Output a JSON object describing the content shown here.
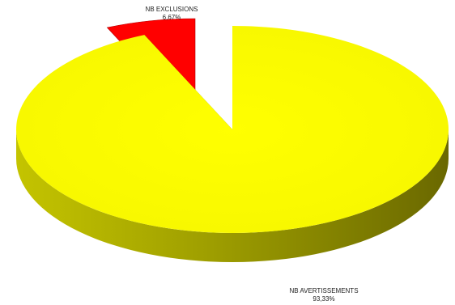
{
  "chart_data": {
    "type": "pie",
    "style": "3d-exploded",
    "slices": [
      {
        "label": "NB AVERTISSEMENTS",
        "value": 93.33,
        "value_label": "93,33%",
        "color": "#ffff00"
      },
      {
        "label": "NB EXCLUSIONS",
        "value": 6.67,
        "value_label": "6,67%",
        "color": "#ff0000"
      }
    ],
    "legend": "none"
  }
}
